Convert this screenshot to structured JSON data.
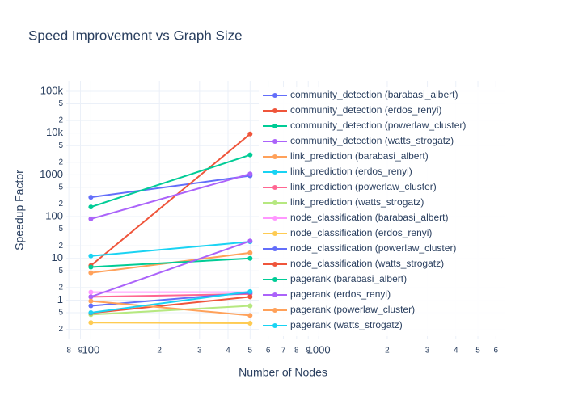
{
  "chart_data": {
    "type": "line",
    "title": "Speed Improvement vs Graph Size",
    "x_label": "Number of Nodes",
    "y_label": "Speedup Factor",
    "x_scale": "log",
    "y_scale": "log",
    "grid": true,
    "legend": "right",
    "x": [
      100,
      500
    ],
    "xlim": [
      78,
      6600
    ],
    "xticks": [
      {
        "value": 80,
        "label": "8"
      },
      {
        "value": 90,
        "label": "9"
      },
      100,
      {
        "value": 200,
        "label": "2"
      },
      {
        "value": 300,
        "label": "3"
      },
      {
        "value": 400,
        "label": "4"
      },
      {
        "value": 500,
        "label": "5"
      },
      {
        "value": 600,
        "label": "6"
      },
      {
        "value": 700,
        "label": "7"
      },
      {
        "value": 800,
        "label": "8"
      },
      {
        "value": 900,
        "label": "9"
      },
      1000,
      {
        "value": 2000,
        "label": "2"
      },
      {
        "value": 3000,
        "label": "3"
      },
      {
        "value": 4000,
        "label": "4"
      },
      {
        "value": 5000,
        "label": "5"
      },
      {
        "value": 6000,
        "label": "6"
      }
    ],
    "ylim": [
      0.115,
      178000
    ],
    "yticks": [
      {
        "value": 0.2,
        "label": "2"
      },
      {
        "value": 0.5,
        "label": "5"
      },
      1,
      2,
      5,
      10,
      {
        "value": 20,
        "label": "2"
      },
      {
        "value": 50,
        "label": "5"
      },
      100,
      {
        "value": 200,
        "label": "2"
      },
      {
        "value": 500,
        "label": "5"
      },
      1000,
      {
        "value": 2000,
        "label": "2"
      },
      {
        "value": 5000,
        "label": "5"
      },
      {
        "value": 10000,
        "label": "10k"
      },
      {
        "value": 20000,
        "label": "2"
      },
      {
        "value": 50000,
        "label": "5"
      },
      {
        "value": 100000,
        "label": "100k"
      }
    ],
    "series": [
      {
        "name": "community_detection (barabasi_albert)",
        "color": "#636efa",
        "values": [
          290,
          950
        ]
      },
      {
        "name": "community_detection (erdos_renyi)",
        "color": "#EF553B",
        "values": [
          6.7,
          9500
        ]
      },
      {
        "name": "community_detection (powerlaw_cluster)",
        "color": "#00cc96",
        "values": [
          170,
          3000
        ]
      },
      {
        "name": "community_detection (watts_strogatz)",
        "color": "#ab63fa",
        "values": [
          88,
          1050
        ]
      },
      {
        "name": "link_prediction (barabasi_albert)",
        "color": "#FFA15A",
        "values": [
          4.5,
          13.6
        ]
      },
      {
        "name": "link_prediction (erdos_renyi)",
        "color": "#19d3f3",
        "values": [
          11.4,
          25
        ]
      },
      {
        "name": "link_prediction (powerlaw_cluster)",
        "color": "#FF6692",
        "values": [
          1.2,
          1.4
        ]
      },
      {
        "name": "link_prediction (watts_strogatz)",
        "color": "#B6E880",
        "values": [
          0.45,
          0.73
        ]
      },
      {
        "name": "node_classification (barabasi_albert)",
        "color": "#FF97FF",
        "values": [
          1.55,
          1.55
        ]
      },
      {
        "name": "node_classification (erdos_renyi)",
        "color": "#FECB52",
        "values": [
          0.29,
          0.28
        ]
      },
      {
        "name": "node_classification (powerlaw_cluster)",
        "color": "#636efa",
        "values": [
          0.73,
          1.5
        ]
      },
      {
        "name": "node_classification (watts_strogatz)",
        "color": "#EF553B",
        "values": [
          0.49,
          1.2
        ]
      },
      {
        "name": "pagerank (barabasi_albert)",
        "color": "#00cc96",
        "values": [
          6.2,
          10
        ]
      },
      {
        "name": "pagerank (erdos_renyi)",
        "color": "#ab63fa",
        "values": [
          1.2,
          26
        ]
      },
      {
        "name": "pagerank (powerlaw_cluster)",
        "color": "#FFA15A",
        "values": [
          0.95,
          0.43
        ]
      },
      {
        "name": "pagerank (watts_strogatz)",
        "color": "#19d3f3",
        "values": [
          0.5,
          1.6
        ]
      }
    ]
  }
}
